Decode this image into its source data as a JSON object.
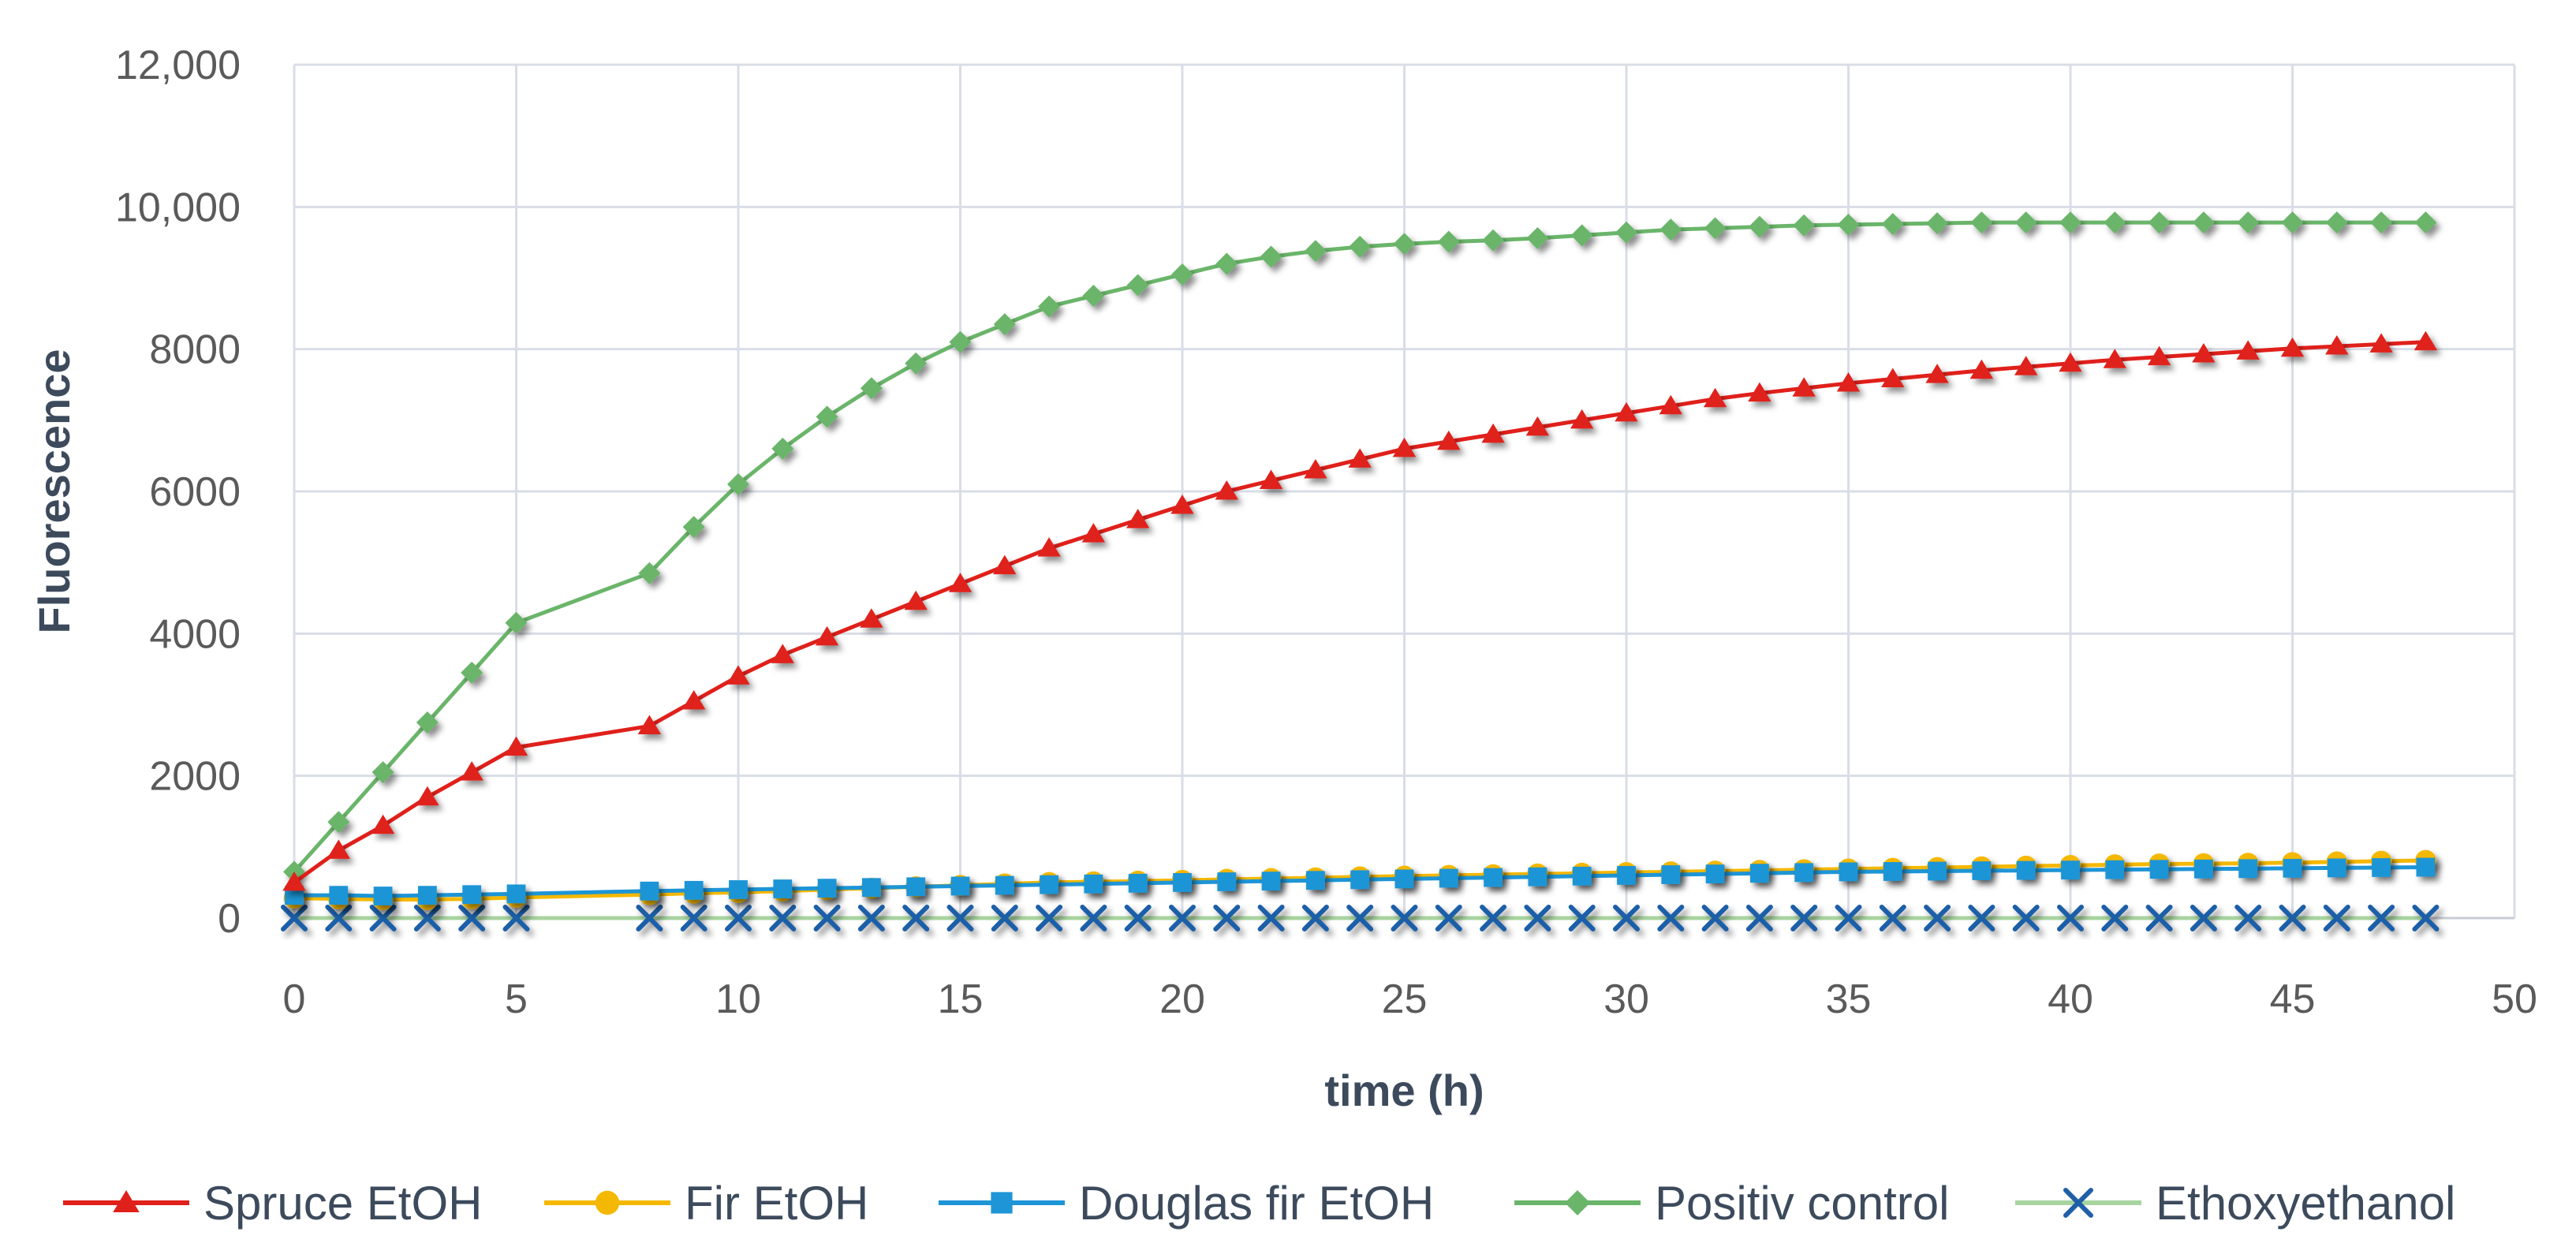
{
  "chart_data": {
    "type": "line",
    "xlabel": "time (h)",
    "ylabel": "Fluorescence",
    "xlim": [
      0,
      50
    ],
    "ylim": [
      0,
      12000
    ],
    "x_ticks": [
      0,
      5,
      10,
      15,
      20,
      25,
      30,
      35,
      40,
      45,
      50
    ],
    "x_tick_labels": [
      "0",
      "5",
      "10",
      "15",
      "20",
      "25",
      "30",
      "35",
      "40",
      "45",
      "50"
    ],
    "y_ticks": [
      0,
      2000,
      4000,
      6000,
      8000,
      10000,
      12000
    ],
    "y_tick_labels": [
      "0",
      "2000",
      "4000",
      "6000",
      "8000",
      "10,000",
      "12,000"
    ],
    "grid": true,
    "legend_position": "bottom",
    "x": [
      0,
      1,
      2,
      3,
      4,
      5,
      8,
      9,
      10,
      11,
      12,
      13,
      14,
      15,
      16,
      17,
      18,
      19,
      20,
      21,
      22,
      23,
      24,
      25,
      26,
      27,
      28,
      29,
      30,
      31,
      32,
      33,
      34,
      35,
      36,
      37,
      38,
      39,
      40,
      41,
      42,
      43,
      44,
      45,
      46,
      47,
      48
    ],
    "series": [
      {
        "name": "Spruce EtOH",
        "color": "#e0201b",
        "marker": "triangle",
        "values": [
          500,
          950,
          1300,
          1700,
          2050,
          2400,
          2700,
          3050,
          3400,
          3700,
          3950,
          4200,
          4450,
          4700,
          4950,
          5200,
          5400,
          5600,
          5800,
          6000,
          6150,
          6300,
          6450,
          6600,
          6700,
          6800,
          6900,
          7000,
          7100,
          7200,
          7300,
          7380,
          7450,
          7520,
          7580,
          7640,
          7700,
          7750,
          7800,
          7850,
          7890,
          7930,
          7970,
          8010,
          8040,
          8070,
          8100
        ]
      },
      {
        "name": "Fir EtOH",
        "color": "#f5b800",
        "marker": "circle",
        "values": [
          280,
          270,
          260,
          260,
          270,
          290,
          330,
          350,
          360,
          380,
          400,
          420,
          440,
          460,
          480,
          500,
          510,
          520,
          530,
          545,
          555,
          565,
          580,
          590,
          600,
          610,
          620,
          630,
          640,
          650,
          660,
          670,
          680,
          690,
          700,
          710,
          720,
          730,
          740,
          750,
          760,
          765,
          770,
          780,
          790,
          800,
          810
        ]
      },
      {
        "name": "Douglas fir EtOH",
        "color": "#1e95d6",
        "marker": "square",
        "values": [
          320,
          320,
          310,
          320,
          330,
          340,
          380,
          390,
          400,
          410,
          420,
          430,
          440,
          450,
          460,
          470,
          480,
          490,
          500,
          510,
          520,
          530,
          540,
          550,
          560,
          570,
          580,
          590,
          600,
          610,
          620,
          630,
          640,
          650,
          655,
          660,
          665,
          670,
          675,
          680,
          685,
          690,
          695,
          700,
          705,
          710,
          715
        ]
      },
      {
        "name": "Positiv control",
        "color": "#6ab56a",
        "marker": "diamond",
        "values": [
          650,
          1350,
          2050,
          2750,
          3450,
          4150,
          4850,
          5500,
          6100,
          6600,
          7050,
          7450,
          7800,
          8100,
          8350,
          8600,
          8750,
          8900,
          9050,
          9200,
          9300,
          9380,
          9440,
          9480,
          9510,
          9530,
          9560,
          9600,
          9640,
          9680,
          9700,
          9720,
          9740,
          9750,
          9760,
          9770,
          9780,
          9780,
          9780,
          9780,
          9780,
          9780,
          9780,
          9780,
          9780,
          9780,
          9780
        ]
      },
      {
        "name": "Ethoxyethanol",
        "color": "#1f5fa8",
        "line_color": "#a8d4a0",
        "marker": "x",
        "values": [
          0,
          0,
          0,
          0,
          0,
          0,
          0,
          0,
          0,
          0,
          0,
          0,
          0,
          0,
          0,
          0,
          0,
          0,
          0,
          0,
          0,
          0,
          0,
          0,
          0,
          0,
          0,
          0,
          0,
          0,
          0,
          0,
          0,
          0,
          0,
          0,
          0,
          0,
          0,
          0,
          0,
          0,
          0,
          0,
          0,
          0,
          0
        ]
      }
    ]
  }
}
